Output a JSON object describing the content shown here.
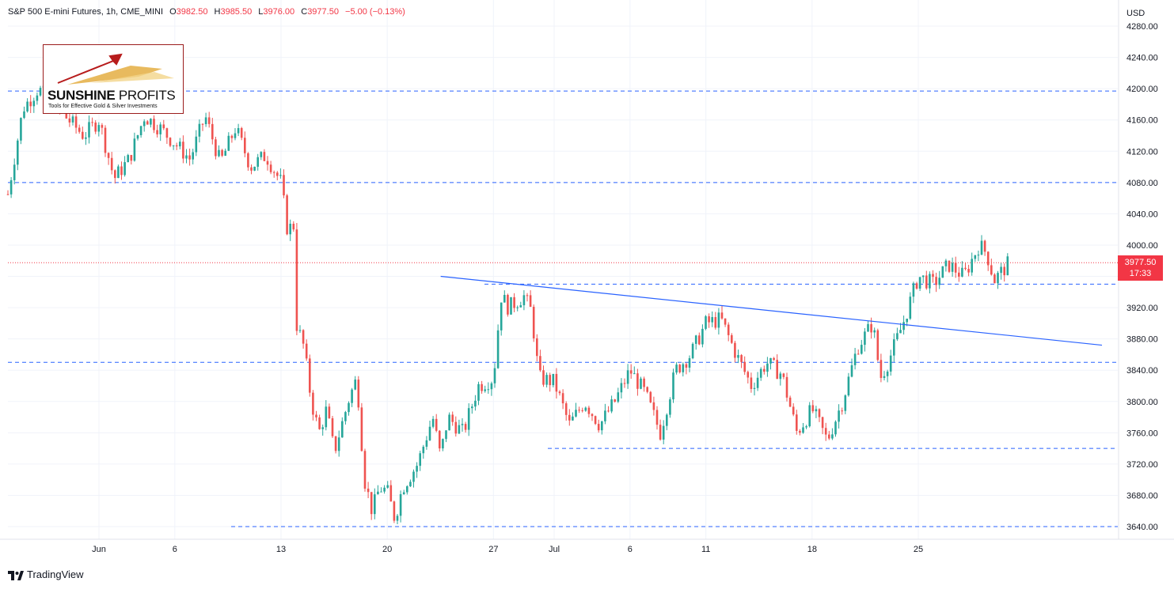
{
  "header": {
    "symbol": "S&P 500 E-mini Futures, 1h, CME_MINI",
    "o_label": "O",
    "o_value": "3982.50",
    "h_label": "H",
    "h_value": "3985.50",
    "l_label": "L",
    "l_value": "3976.00",
    "c_label": "C",
    "c_value": "3977.50",
    "change": "−5.00 (−0.13%)"
  },
  "logo": {
    "brand_bold": "SUNSHINE",
    "brand_light": " PROFITS",
    "tagline": "Tools for Effective Gold & Silver Investments"
  },
  "price_axis": {
    "currency": "USD"
  },
  "current_price": {
    "value": "3977.50",
    "countdown": "17:33"
  },
  "footer": {
    "brand": "TradingView"
  },
  "colors": {
    "up": "#26a69a",
    "down": "#ef5350",
    "level_line": "#2962ff",
    "trendline": "#2962ff",
    "last_price": "#f23645",
    "grid": "#f0f3fa"
  },
  "chart_data": {
    "type": "candlestick",
    "title": "S&P 500 E-mini Futures, 1h, CME_MINI",
    "ylim": [
      3620,
      4290
    ],
    "y_ticks": [
      3640,
      3680,
      3720,
      3760,
      3800,
      3840,
      3880,
      3920,
      3960,
      4000,
      4040,
      4080,
      4120,
      4160,
      4200,
      4240,
      4280
    ],
    "y_tick_labels": [
      "3640.00",
      "3680.00",
      "3720.00",
      "3760.00",
      "3800.00",
      "3840.00",
      "3880.00",
      "3920.00",
      "3960.00",
      "4000.00",
      "4040.00",
      "4080.00",
      "4120.00",
      "4160.00",
      "4200.00",
      "4240.00",
      "4280.00"
    ],
    "x_range": [
      "2022-05-26",
      "2022-07-31"
    ],
    "x_ticks": [
      {
        "date": "2022-06-01",
        "label": "Jun"
      },
      {
        "date": "2022-06-06",
        "label": "6"
      },
      {
        "date": "2022-06-13",
        "label": "13"
      },
      {
        "date": "2022-06-20",
        "label": "20"
      },
      {
        "date": "2022-06-27",
        "label": "27"
      },
      {
        "date": "2022-07-01",
        "label": "Jul"
      },
      {
        "date": "2022-07-06",
        "label": "6"
      },
      {
        "date": "2022-07-11",
        "label": "11"
      },
      {
        "date": "2022-07-18",
        "label": "18"
      },
      {
        "date": "2022-07-25",
        "label": "25"
      }
    ],
    "price_path": [
      [
        "2022-05-26",
        4065
      ],
      [
        "2022-05-27",
        4175
      ],
      [
        "2022-05-28",
        4200
      ],
      [
        "2022-05-31",
        4140
      ],
      [
        "2022-06-01",
        4160
      ],
      [
        "2022-06-02",
        4085
      ],
      [
        "2022-06-03",
        4110
      ],
      [
        "2022-06-04",
        4165
      ],
      [
        "2022-06-05",
        4150
      ],
      [
        "2022-06-07",
        4110
      ],
      [
        "2022-06-08",
        4165
      ],
      [
        "2022-06-09",
        4105
      ],
      [
        "2022-06-10",
        4150
      ],
      [
        "2022-06-11",
        4100
      ],
      [
        "2022-06-12",
        4115
      ],
      [
        "2022-06-13",
        4080
      ],
      [
        "2022-06-13T10",
        4020
      ],
      [
        "2022-06-13T20",
        4025
      ],
      [
        "2022-06-14",
        3900
      ],
      [
        "2022-06-14T12",
        3870
      ],
      [
        "2022-06-15",
        3800
      ],
      [
        "2022-06-15T12",
        3760
      ],
      [
        "2022-06-16",
        3790
      ],
      [
        "2022-06-16T12",
        3735
      ],
      [
        "2022-06-17",
        3770
      ],
      [
        "2022-06-17T12",
        3805
      ],
      [
        "2022-06-18",
        3830
      ],
      [
        "2022-06-18T12",
        3700
      ],
      [
        "2022-06-19",
        3660
      ],
      [
        "2022-06-19T12",
        3690
      ],
      [
        "2022-06-20",
        3685
      ],
      [
        "2022-06-20T12",
        3650
      ],
      [
        "2022-06-21",
        3690
      ],
      [
        "2022-06-22",
        3720
      ],
      [
        "2022-06-23",
        3780
      ],
      [
        "2022-06-23T12",
        3730
      ],
      [
        "2022-06-24",
        3780
      ],
      [
        "2022-06-25",
        3760
      ],
      [
        "2022-06-26",
        3820
      ],
      [
        "2022-06-27",
        3830
      ],
      [
        "2022-06-27T12",
        3935
      ],
      [
        "2022-06-28",
        3920
      ],
      [
        "2022-06-29",
        3935
      ],
      [
        "2022-06-29T12",
        3915
      ],
      [
        "2022-06-30",
        3830
      ],
      [
        "2022-07-01",
        3825
      ],
      [
        "2022-07-02",
        3770
      ],
      [
        "2022-07-03",
        3800
      ],
      [
        "2022-07-04",
        3770
      ],
      [
        "2022-07-05",
        3800
      ],
      [
        "2022-07-06",
        3840
      ],
      [
        "2022-07-07",
        3810
      ],
      [
        "2022-07-08",
        3760
      ],
      [
        "2022-07-09",
        3840
      ],
      [
        "2022-07-10",
        3860
      ],
      [
        "2022-07-11",
        3900
      ],
      [
        "2022-07-12",
        3905
      ],
      [
        "2022-07-13",
        3860
      ],
      [
        "2022-07-14",
        3820
      ],
      [
        "2022-07-15",
        3850
      ],
      [
        "2022-07-16",
        3835
      ],
      [
        "2022-07-17",
        3760
      ],
      [
        "2022-07-18",
        3790
      ],
      [
        "2022-07-19",
        3750
      ],
      [
        "2022-07-20",
        3800
      ],
      [
        "2022-07-21",
        3870
      ],
      [
        "2022-07-22",
        3900
      ],
      [
        "2022-07-22T12",
        3830
      ],
      [
        "2022-07-23",
        3850
      ],
      [
        "2022-07-24",
        3900
      ],
      [
        "2022-07-25",
        3960
      ],
      [
        "2022-07-26",
        3950
      ],
      [
        "2022-07-27",
        3975
      ],
      [
        "2022-07-28",
        3960
      ],
      [
        "2022-07-29",
        4000
      ],
      [
        "2022-07-29T12",
        3990
      ],
      [
        "2022-07-30",
        3955
      ],
      [
        "2022-07-31",
        3977.5
      ]
    ],
    "horizontal_levels": [
      4197,
      4080,
      3977.5,
      3950,
      3850,
      3740,
      3640
    ],
    "trendline": {
      "start": [
        "2022-06-23",
        3960
      ],
      "end": [
        "2022-08-15",
        3872
      ]
    }
  }
}
